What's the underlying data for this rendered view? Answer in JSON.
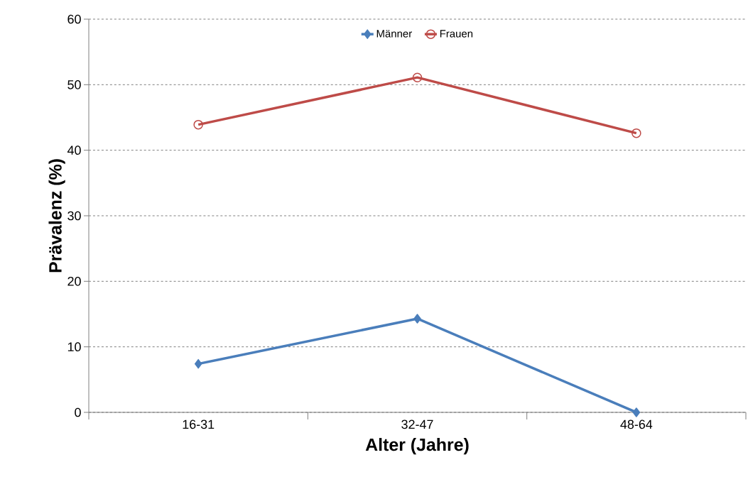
{
  "chart_data": {
    "type": "line",
    "xlabel": "Alter (Jahre)",
    "ylabel": "Prävalenz (%)",
    "categories": [
      "16-31",
      "32-47",
      "48-64"
    ],
    "series": [
      {
        "name": "Männer",
        "color": "#4a7ebb",
        "marker": "diamond",
        "values": [
          7.4,
          14.3,
          0
        ]
      },
      {
        "name": "Frauen",
        "color": "#be4b48",
        "marker": "circle",
        "values": [
          43.9,
          51.1,
          42.6
        ]
      }
    ],
    "ylim": [
      0,
      60
    ],
    "yticks": [
      0,
      10,
      20,
      30,
      40,
      50,
      60
    ],
    "grid": "y",
    "legend": "top"
  }
}
